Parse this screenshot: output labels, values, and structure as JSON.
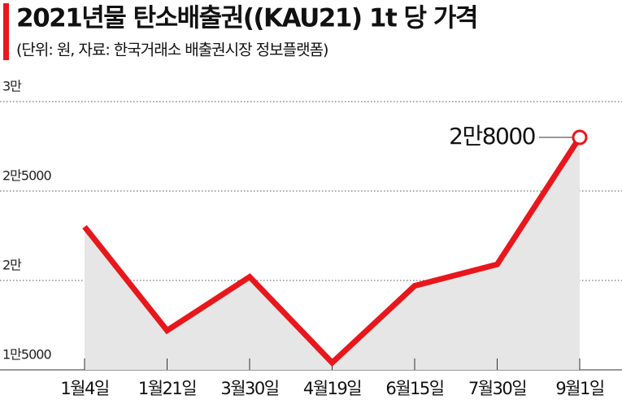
{
  "chart_data": {
    "type": "line",
    "title": "2021년물 탄소배출권((KAU21) 1t 당 가격",
    "subtitle": "(단위: 원, 자료: 한국거래소 배출권시장 정보플랫폼)",
    "categories": [
      "1월4일",
      "1월21일",
      "3월30일",
      "4월19일",
      "6월15일",
      "7월30일",
      "9월1일"
    ],
    "series": [
      {
        "name": "KAU21",
        "color": "#e8171c",
        "values": [
          23000,
          17200,
          20200,
          15400,
          19700,
          20900,
          28000
        ]
      }
    ],
    "ylim": [
      15000,
      30000
    ],
    "yticks": [
      {
        "value": 15000,
        "label": "1만5000"
      },
      {
        "value": 20000,
        "label": "2만"
      },
      {
        "value": 25000,
        "label": "2만5000"
      },
      {
        "value": 30000,
        "label": "3만"
      }
    ],
    "annotation": {
      "label": "2만8000",
      "value": 28000
    },
    "grid": true
  }
}
